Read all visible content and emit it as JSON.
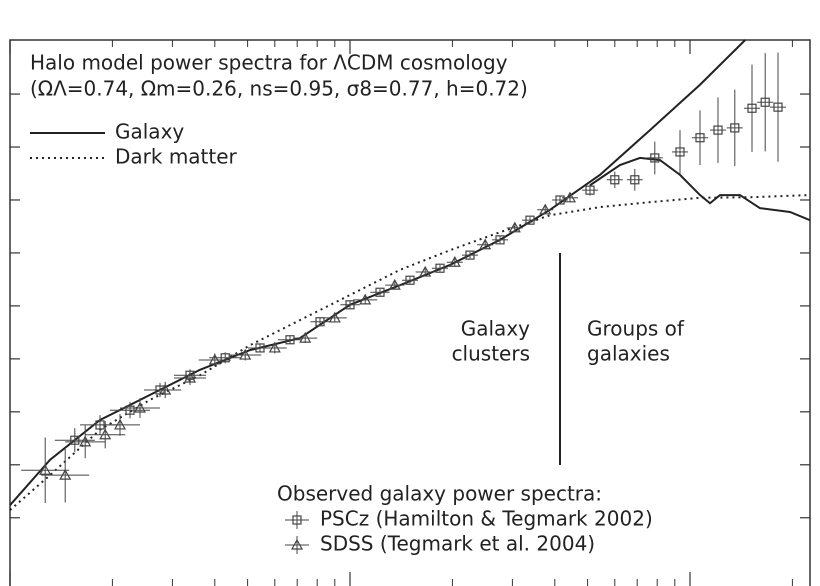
{
  "chart_data": {
    "type": "line",
    "title": "Halo model power spectra for ΛCDM cosmology",
    "subtitle": "(ΩΛ=0.74, Ωm=0.26, ns=0.95, σ8=0.77, h=0.72)",
    "xlim": [
      0,
      100
    ],
    "ylim": [
      0,
      100
    ],
    "xticks": [
      0,
      42.5,
      85
    ],
    "xminorticks": [
      12.8,
      20.3,
      25.6,
      29.7,
      33.1,
      35.9,
      38.4,
      40.6,
      55.3,
      62.8,
      68.1,
      72.2,
      75.6,
      78.4,
      80.9,
      83.1,
      97.8
    ],
    "yticks": [
      12.5,
      22.2,
      31.9,
      41.6,
      51.3,
      61.0,
      70.7,
      80.4,
      90.1
    ],
    "lines": [
      {
        "name": "Galaxy",
        "style": "solid",
        "color": "#222222",
        "x": [
          0,
          5,
          11.25,
          17.5,
          23.75,
          30,
          36.25,
          42.5,
          48.75,
          55,
          61.25,
          67.5,
          73.75,
          80,
          86.25,
          91.9,
          null,
          72.5,
          76.25,
          78.75,
          81.25,
          83.75,
          86.25,
          87.5,
          88.75,
          91.25,
          93.75,
          97.5,
          100
        ],
        "y": [
          14.8,
          23.1,
          30.4,
          35.0,
          39.6,
          43.2,
          45.4,
          51.5,
          55.1,
          58.8,
          63.4,
          68.9,
          75.3,
          83.5,
          91.8,
          100,
          null,
          73.4,
          77.1,
          78.4,
          78.0,
          75.3,
          71.6,
          70.1,
          71.6,
          71.6,
          69.2,
          68.5,
          67.0
        ]
      },
      {
        "name": "Dark matter",
        "style": "dotted",
        "color": "#222222",
        "x": [
          0,
          5,
          11.25,
          17.5,
          23.75,
          30,
          36.25,
          42.5,
          48.75,
          55,
          61.25,
          67.5,
          73.75,
          80,
          86.25,
          92.5,
          100
        ],
        "y": [
          13.9,
          20.3,
          28.6,
          34.1,
          38.6,
          44.1,
          48.7,
          53.3,
          57.9,
          61.5,
          64.8,
          67.9,
          69.4,
          70.3,
          71.1,
          71.2,
          71.6
        ]
      }
    ],
    "legend_title": "Observed galaxy power spectra:",
    "series": [
      {
        "name": "PSCz (Hamilton & Tegmark 2002)",
        "marker": "square",
        "color": "#444444",
        "x": [
          8.1,
          11.25,
          15,
          18.75,
          22.5,
          26.9,
          31.25,
          35,
          38.75,
          42.5,
          46.25,
          50,
          53.75,
          57.5,
          61.25,
          65,
          68.75,
          72.5,
          75.6,
          78.1,
          80.6,
          83.75,
          86.25,
          88.5,
          90.6,
          92.75,
          94.4,
          96
        ],
        "y": [
          26.7,
          29.5,
          32.2,
          35.9,
          38.6,
          41.8,
          43.6,
          45.1,
          48.4,
          51.5,
          53.8,
          56.0,
          58.2,
          60.6,
          63.4,
          67.0,
          70.7,
          72.5,
          74.4,
          74.4,
          78.4,
          79.5,
          82.1,
          83.5,
          83.9,
          87.5,
          88.6,
          87.7
        ],
        "yerr": [
          2.2,
          1.8,
          1.5,
          1.3,
          1.1,
          1.0,
          0.8,
          0.8,
          0.7,
          0.7,
          0.6,
          0.6,
          0.6,
          0.6,
          0.6,
          0.6,
          0.8,
          1.0,
          1.5,
          2,
          3,
          4,
          5,
          6,
          7,
          8,
          9,
          10
        ],
        "xerr": [
          2.5,
          2.5,
          2.5,
          2,
          2,
          2,
          1.5,
          1.5,
          1.2,
          1.2,
          1.2,
          1,
          1,
          1,
          1,
          1,
          1,
          1,
          1,
          1,
          1,
          1,
          1,
          1,
          1,
          1,
          1,
          1
        ]
      },
      {
        "name": "SDSS (Tegmark et al. 2004)",
        "marker": "triangle",
        "color": "#444444",
        "x": [
          4.4,
          6.9,
          9.4,
          11.9,
          13.75,
          16.25,
          19.4,
          22.5,
          25.6,
          29.4,
          33.1,
          36.9,
          40.6,
          44.4,
          48.1,
          51.9,
          55.6,
          59.4,
          63.1,
          66.9,
          70
        ],
        "y": [
          21.2,
          20.3,
          26.4,
          27.7,
          29.5,
          32.6,
          35.9,
          38.1,
          41.4,
          42.3,
          43.6,
          45.4,
          49.1,
          52.4,
          55.1,
          57.5,
          59.3,
          62.5,
          65.6,
          68.9,
          71.1
        ],
        "yerr": [
          6,
          5,
          3,
          2.5,
          2,
          1.8,
          1.5,
          1.3,
          1.2,
          1,
          1,
          0.9,
          0.8,
          0.8,
          0.7,
          0.7,
          0.7,
          0.7,
          0.7,
          0.8,
          0.8
        ],
        "xerr": [
          3,
          3,
          2.5,
          2.5,
          2.5,
          2.5,
          2,
          2,
          2,
          2,
          1.5,
          1.5,
          1.5,
          1.5,
          1.2,
          1.2,
          1,
          1,
          1,
          1,
          1
        ]
      }
    ],
    "annotations": [
      {
        "lines": [
          "Galaxy",
          "clusters"
        ]
      },
      {
        "lines": [
          "Groups of",
          "galaxies"
        ]
      }
    ]
  }
}
